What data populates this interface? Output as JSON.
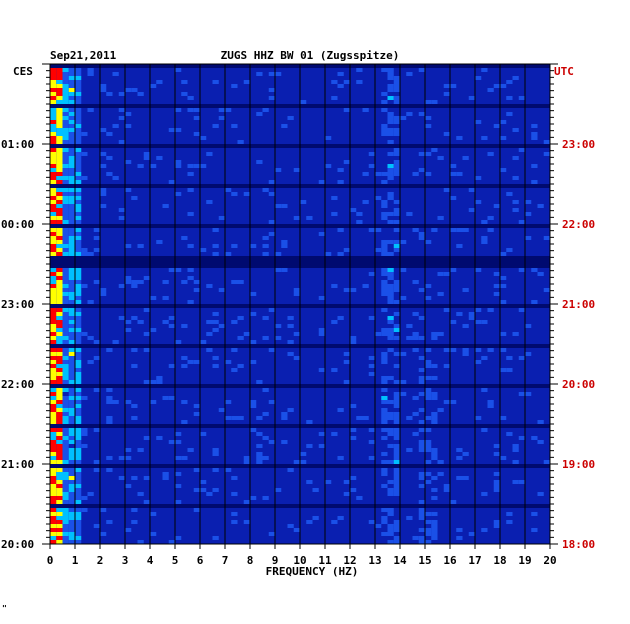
{
  "chart_data": {
    "type": "heatmap",
    "header_date": "Sep21,2011",
    "title": "ZUGS HHZ BW 01 (Zugsspitze)",
    "left_axis_label": "CES",
    "right_axis_label": "UTC",
    "xlabel": "FREQUENCY (HZ)",
    "x_ticks": [
      "0",
      "1",
      "2",
      "3",
      "4",
      "5",
      "6",
      "7",
      "8",
      "9",
      "10",
      "11",
      "12",
      "13",
      "14",
      "15",
      "16",
      "17",
      "18",
      "19",
      "20"
    ],
    "xlim": [
      0,
      20
    ],
    "left_time_ticks": [
      "01:00",
      "00:00",
      "23:00",
      "22:00",
      "21:00",
      "20:00"
    ],
    "right_time_ticks": [
      "23:00",
      "22:00",
      "21:00",
      "20:00",
      "19:00",
      "18:00"
    ],
    "time_range_utc": [
      "18:00",
      "24:00"
    ],
    "colors": {
      "background": "#0a1fb0",
      "left_axis_text": "#000000",
      "right_axis_text": "#cc0000",
      "energy_high": "#ff0000",
      "energy_mid": "#ffff00",
      "energy_low": "#00c0ff"
    }
  },
  "corner_mark": "\""
}
